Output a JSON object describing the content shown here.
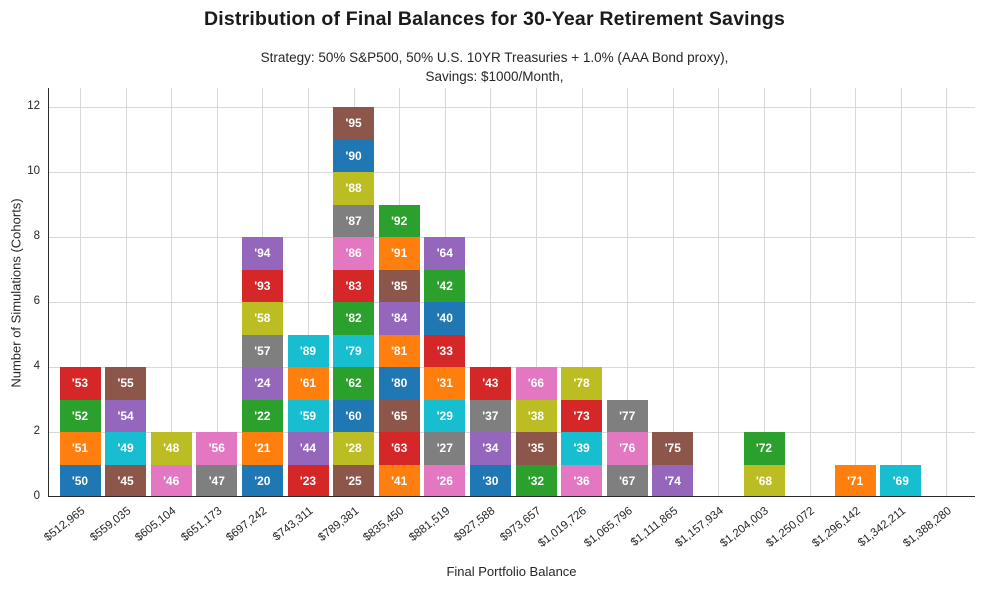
{
  "header": {
    "title": "Distribution of Final Balances for 30-Year Retirement Savings",
    "subtitle_line1": "Strategy: 50% S&P500, 50% U.S. 10YR Treasuries + 1.0% (AAA Bond proxy),",
    "subtitle_line2": "Savings: $1000/Month,"
  },
  "chart_data": {
    "type": "bar",
    "stacked": true,
    "title": "Distribution of Final Balances for 30-Year Retirement Savings",
    "xlabel": "Final Portfolio Balance",
    "ylabel": "Number of Simulations (Cohorts)",
    "ylim": [
      0,
      12
    ],
    "yticks": [
      0,
      2,
      4,
      6,
      8,
      10,
      12
    ],
    "grid": true,
    "grid_color": "#d9d9d9",
    "axis_color": "#2b2b2b",
    "segment_unit_value": 1,
    "palette_tab10": [
      "#1f77b4",
      "#ff7f0e",
      "#2ca02c",
      "#d62728",
      "#9467bd",
      "#8c564b",
      "#e377c2",
      "#7f7f7f",
      "#bcbd22",
      "#17becf"
    ],
    "categories": [
      "$512,965",
      "$559,035",
      "$605,104",
      "$651,173",
      "$697,242",
      "$743,311",
      "$789,381",
      "$835,450",
      "$881,519",
      "$927,588",
      "$973,657",
      "$1,019,726",
      "$1,065,796",
      "$1,111,865",
      "$1,157,934",
      "$1,204,003",
      "$1,250,072",
      "$1,296,142",
      "$1,342,211",
      "$1,388,280"
    ],
    "bar_heights": [
      4,
      4,
      2,
      2,
      8,
      5,
      12,
      9,
      8,
      4,
      4,
      4,
      3,
      2,
      0,
      2,
      0,
      1,
      1,
      0
    ],
    "bars": [
      {
        "category": "$512,965",
        "segments": [
          {
            "label": "'50",
            "color": "#1f77b4"
          },
          {
            "label": "'51",
            "color": "#ff7f0e"
          },
          {
            "label": "'52",
            "color": "#2ca02c"
          },
          {
            "label": "'53",
            "color": "#d62728"
          }
        ]
      },
      {
        "category": "$559,035",
        "segments": [
          {
            "label": "'45",
            "color": "#8c564b"
          },
          {
            "label": "'49",
            "color": "#17becf"
          },
          {
            "label": "'54",
            "color": "#9467bd"
          },
          {
            "label": "'55",
            "color": "#8c564b"
          }
        ]
      },
      {
        "category": "$605,104",
        "segments": [
          {
            "label": "'46",
            "color": "#e377c2"
          },
          {
            "label": "'48",
            "color": "#bcbd22"
          }
        ]
      },
      {
        "category": "$651,173",
        "segments": [
          {
            "label": "'47",
            "color": "#7f7f7f"
          },
          {
            "label": "'56",
            "color": "#e377c2"
          }
        ]
      },
      {
        "category": "$697,242",
        "segments": [
          {
            "label": "'20",
            "color": "#1f77b4"
          },
          {
            "label": "'21",
            "color": "#ff7f0e"
          },
          {
            "label": "'22",
            "color": "#2ca02c"
          },
          {
            "label": "'24",
            "color": "#9467bd"
          },
          {
            "label": "'57",
            "color": "#7f7f7f"
          },
          {
            "label": "'58",
            "color": "#bcbd22"
          },
          {
            "label": "'93",
            "color": "#d62728"
          },
          {
            "label": "'94",
            "color": "#9467bd"
          }
        ]
      },
      {
        "category": "$743,311",
        "segments": [
          {
            "label": "'23",
            "color": "#d62728"
          },
          {
            "label": "'44",
            "color": "#9467bd"
          },
          {
            "label": "'59",
            "color": "#17becf"
          },
          {
            "label": "'61",
            "color": "#ff7f0e"
          },
          {
            "label": "'89",
            "color": "#17becf"
          }
        ]
      },
      {
        "category": "$789,381",
        "segments": [
          {
            "label": "'25",
            "color": "#8c564b"
          },
          {
            "label": "'28",
            "color": "#bcbd22"
          },
          {
            "label": "'60",
            "color": "#1f77b4"
          },
          {
            "label": "'62",
            "color": "#2ca02c"
          },
          {
            "label": "'79",
            "color": "#17becf"
          },
          {
            "label": "'82",
            "color": "#2ca02c"
          },
          {
            "label": "'83",
            "color": "#d62728"
          },
          {
            "label": "'86",
            "color": "#e377c2"
          },
          {
            "label": "'87",
            "color": "#7f7f7f"
          },
          {
            "label": "'88",
            "color": "#bcbd22"
          },
          {
            "label": "'90",
            "color": "#1f77b4"
          },
          {
            "label": "'95",
            "color": "#8c564b"
          }
        ]
      },
      {
        "category": "$835,450",
        "segments": [
          {
            "label": "'41",
            "color": "#ff7f0e"
          },
          {
            "label": "'63",
            "color": "#d62728"
          },
          {
            "label": "'65",
            "color": "#8c564b"
          },
          {
            "label": "'80",
            "color": "#1f77b4"
          },
          {
            "label": "'81",
            "color": "#ff7f0e"
          },
          {
            "label": "'84",
            "color": "#9467bd"
          },
          {
            "label": "'85",
            "color": "#8c564b"
          },
          {
            "label": "'91",
            "color": "#ff7f0e"
          },
          {
            "label": "'92",
            "color": "#2ca02c"
          }
        ]
      },
      {
        "category": "$881,519",
        "segments": [
          {
            "label": "'26",
            "color": "#e377c2"
          },
          {
            "label": "'27",
            "color": "#7f7f7f"
          },
          {
            "label": "'29",
            "color": "#17becf"
          },
          {
            "label": "'31",
            "color": "#ff7f0e"
          },
          {
            "label": "'33",
            "color": "#d62728"
          },
          {
            "label": "'40",
            "color": "#1f77b4"
          },
          {
            "label": "'42",
            "color": "#2ca02c"
          },
          {
            "label": "'64",
            "color": "#9467bd"
          }
        ]
      },
      {
        "category": "$927,588",
        "segments": [
          {
            "label": "'30",
            "color": "#1f77b4"
          },
          {
            "label": "'34",
            "color": "#9467bd"
          },
          {
            "label": "'37",
            "color": "#7f7f7f"
          },
          {
            "label": "'43",
            "color": "#d62728"
          }
        ]
      },
      {
        "category": "$973,657",
        "segments": [
          {
            "label": "'32",
            "color": "#2ca02c"
          },
          {
            "label": "'35",
            "color": "#8c564b"
          },
          {
            "label": "'38",
            "color": "#bcbd22"
          },
          {
            "label": "'66",
            "color": "#e377c2"
          }
        ]
      },
      {
        "category": "$1,019,726",
        "segments": [
          {
            "label": "'36",
            "color": "#e377c2"
          },
          {
            "label": "'39",
            "color": "#17becf"
          },
          {
            "label": "'73",
            "color": "#d62728"
          },
          {
            "label": "'78",
            "color": "#bcbd22"
          }
        ]
      },
      {
        "category": "$1,065,796",
        "segments": [
          {
            "label": "'67",
            "color": "#7f7f7f"
          },
          {
            "label": "'76",
            "color": "#e377c2"
          },
          {
            "label": "'77",
            "color": "#7f7f7f"
          }
        ]
      },
      {
        "category": "$1,111,865",
        "segments": [
          {
            "label": "'74",
            "color": "#9467bd"
          },
          {
            "label": "'75",
            "color": "#8c564b"
          }
        ]
      },
      {
        "category": "$1,157,934",
        "segments": []
      },
      {
        "category": "$1,204,003",
        "segments": [
          {
            "label": "'68",
            "color": "#bcbd22"
          },
          {
            "label": "'72",
            "color": "#2ca02c"
          }
        ]
      },
      {
        "category": "$1,250,072",
        "segments": []
      },
      {
        "category": "$1,296,142",
        "segments": [
          {
            "label": "'71",
            "color": "#ff7f0e"
          }
        ]
      },
      {
        "category": "$1,342,211",
        "segments": [
          {
            "label": "'69",
            "color": "#17becf"
          }
        ]
      },
      {
        "category": "$1,388,280",
        "segments": []
      }
    ]
  }
}
